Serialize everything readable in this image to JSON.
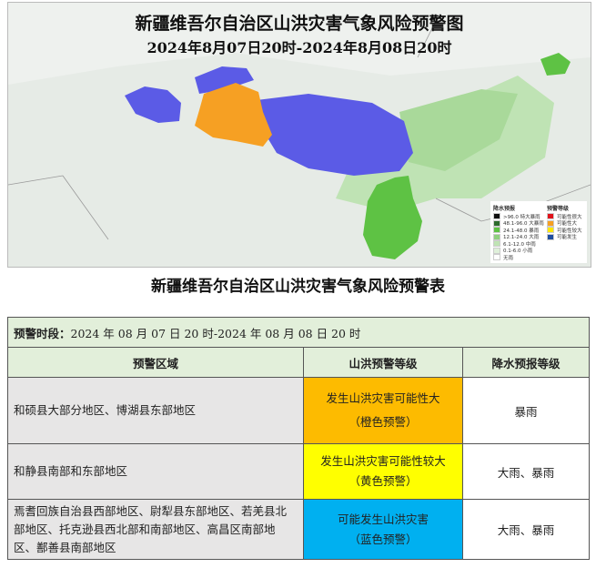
{
  "map": {
    "title": "新疆维吾尔自治区山洪灾害气象风险预警图",
    "period": "2024年8月07日20时-2024年8月08日20时",
    "colors": {
      "blue": "#5b5be6",
      "orange": "#f6a023",
      "green": "#5ec244",
      "lightgreen": "#a9d99a"
    },
    "legend": {
      "rain_title": "降水预报",
      "rain": [
        {
          "c": "#111111",
          "t": ">96.0 特大暴雨"
        },
        {
          "c": "#2e6b2e",
          "t": "48.1-96.0 大暴雨"
        },
        {
          "c": "#5ec244",
          "t": "24.1-48.0 暴雨"
        },
        {
          "c": "#8fd07f",
          "t": "12.1-24.0 大雨"
        },
        {
          "c": "#bfe3b4",
          "t": "6.1-12.0 中雨"
        },
        {
          "c": "#dff0da",
          "t": "0.1-6.0 小雨"
        },
        {
          "c": "#ffffff",
          "t": "无雨"
        }
      ],
      "warn_title": "预警等级",
      "warn": [
        {
          "c": "#e0131b",
          "t": "可能性很大"
        },
        {
          "c": "#f6a023",
          "t": "可能性大"
        },
        {
          "c": "#ffe800",
          "t": "可能性较大"
        },
        {
          "c": "#1f4ea0",
          "t": "可能发生"
        }
      ]
    }
  },
  "subtitle": "新疆维吾尔自治区山洪灾害气象风险预警表",
  "table": {
    "period_label": "预警时段：",
    "period": "2024 年 08 月 07 日 20 时-2024 年 08 月 08 日 20 时",
    "headers": [
      "预警区域",
      "山洪预警等级",
      "降水预报等级"
    ],
    "rows": [
      {
        "region": "和硕县大部分地区、博湖县东部地区",
        "level": "发生山洪灾害可能性大",
        "level_tag": "（橙色预警）",
        "color": "#fdbb00",
        "rain": "暴雨"
      },
      {
        "region": "和静县南部和东部地区",
        "level": "发生山洪灾害可能性较大",
        "level_tag": "（黄色预警）",
        "color": "#ffff00",
        "rain": "大雨、暴雨"
      },
      {
        "region": "焉耆回族自治县西部地区、尉犁县东部地区、若羌县北部地区、托克逊县西北部和南部地区、高昌区南部地区、鄯善县南部地区",
        "level": "可能发生山洪灾害",
        "level_tag": "（蓝色预警）",
        "color": "#00b0f0",
        "rain": "大雨、暴雨"
      }
    ]
  }
}
